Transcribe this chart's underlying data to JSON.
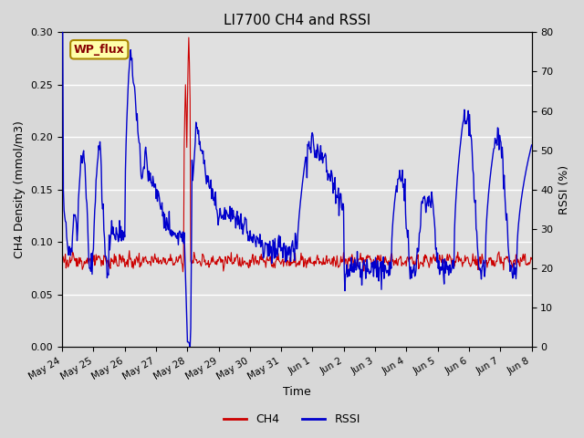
{
  "title": "LI7700 CH4 and RSSI",
  "xlabel": "Time",
  "ylabel_left": "CH4 Density (mmol/m3)",
  "ylabel_right": "RSSI (%)",
  "ylim_left": [
    0.0,
    0.3
  ],
  "ylim_right": [
    0,
    80
  ],
  "yticks_left": [
    0.0,
    0.05,
    0.1,
    0.15,
    0.2,
    0.25,
    0.3
  ],
  "yticks_right": [
    0,
    10,
    20,
    30,
    40,
    50,
    60,
    70,
    80
  ],
  "background_color": "#d8d8d8",
  "plot_bg_color": "#e0e0e0",
  "ch4_color": "#cc0000",
  "rssi_color": "#0000cc",
  "annotation_text": "WP_flux",
  "annotation_bg": "#ffffaa",
  "annotation_border": "#aa8800",
  "x_tick_labels": [
    "May 24",
    "May 25",
    "May 26",
    "May 27",
    "May 28",
    "May 29",
    "May 30",
    "May 31",
    "Jun 1",
    "Jun 2",
    "Jun 3",
    "Jun 4",
    "Jun 5",
    "Jun 6",
    "Jun 7",
    "Jun 8"
  ],
  "n_days": 16
}
